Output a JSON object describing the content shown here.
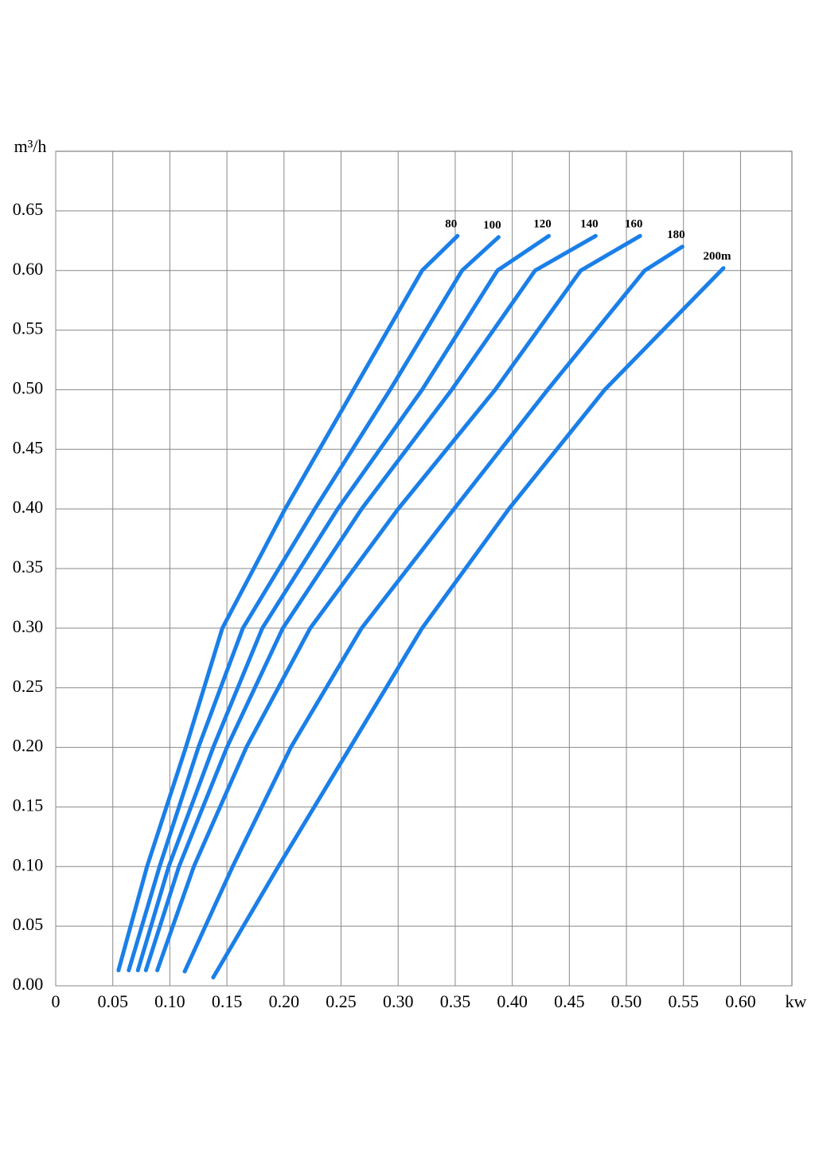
{
  "chart_data": {
    "type": "line",
    "x_label": "kw",
    "y_label": "m³/h",
    "xlim": [
      0,
      0.645
    ],
    "ylim": [
      0,
      0.7
    ],
    "xticks": [
      0,
      0.05,
      {
        "value": 0.1,
        "label": "0.10"
      },
      0.15,
      {
        "value": 0.2,
        "label": "0.20"
      },
      0.25,
      {
        "value": 0.3,
        "label": "0.30"
      },
      0.35,
      {
        "value": 0.4,
        "label": "0.40"
      },
      0.45,
      {
        "value": 0.5,
        "label": "0.50"
      },
      0.55,
      {
        "value": 0.6,
        "label": "0.60"
      }
    ],
    "yticks": [
      {
        "value": 0,
        "label": "0.00"
      },
      0.05,
      {
        "value": 0.1,
        "label": "0.10"
      },
      0.15,
      {
        "value": 0.2,
        "label": "0.20"
      },
      0.25,
      {
        "value": 0.3,
        "label": "0.30"
      },
      0.35,
      {
        "value": 0.4,
        "label": "0.40"
      },
      0.45,
      {
        "value": 0.5,
        "label": "0.50"
      },
      0.55,
      {
        "value": 0.6,
        "label": "0.60"
      },
      0.65
    ],
    "grid": true,
    "series": [
      {
        "name": "80",
        "color": "#1a7fe8",
        "x": [
          0.055,
          0.08,
          0.114,
          0.146,
          0.201,
          0.261,
          0.321,
          0.352
        ],
        "values": [
          0.013,
          0.1,
          0.2,
          0.3,
          0.4,
          0.5,
          0.6,
          0.629
        ]
      },
      {
        "name": "100",
        "color": "#1a7fe8",
        "x": [
          0.064,
          0.091,
          0.125,
          0.164,
          0.227,
          0.293,
          0.356,
          0.388
        ],
        "values": [
          0.013,
          0.1,
          0.2,
          0.3,
          0.4,
          0.5,
          0.6,
          0.628
        ]
      },
      {
        "name": "120",
        "color": "#1a7fe8",
        "x": [
          0.072,
          0.099,
          0.138,
          0.181,
          0.247,
          0.321,
          0.387,
          0.432
        ],
        "values": [
          0.013,
          0.1,
          0.2,
          0.3,
          0.4,
          0.5,
          0.6,
          0.629
        ]
      },
      {
        "name": "140",
        "color": "#1a7fe8",
        "x": [
          0.079,
          0.108,
          0.15,
          0.199,
          0.268,
          0.347,
          0.42,
          0.473
        ],
        "values": [
          0.013,
          0.1,
          0.2,
          0.3,
          0.4,
          0.5,
          0.6,
          0.629
        ]
      },
      {
        "name": "160",
        "color": "#1a7fe8",
        "x": [
          0.089,
          0.121,
          0.167,
          0.223,
          0.3,
          0.385,
          0.46,
          0.512
        ],
        "values": [
          0.013,
          0.1,
          0.2,
          0.3,
          0.4,
          0.5,
          0.6,
          0.629
        ]
      },
      {
        "name": "180",
        "color": "#1a7fe8",
        "x": [
          0.113,
          0.155,
          0.206,
          0.268,
          0.349,
          0.431,
          0.516,
          0.549
        ],
        "values": [
          0.012,
          0.1,
          0.2,
          0.3,
          0.4,
          0.5,
          0.6,
          0.62
        ]
      },
      {
        "name": "200m",
        "color": "#1a7fe8",
        "x": [
          0.138,
          0.195,
          0.258,
          0.321,
          0.397,
          0.481,
          0.585
        ],
        "values": [
          0.007,
          0.1,
          0.2,
          0.3,
          0.4,
          0.5,
          0.602
        ]
      }
    ]
  }
}
